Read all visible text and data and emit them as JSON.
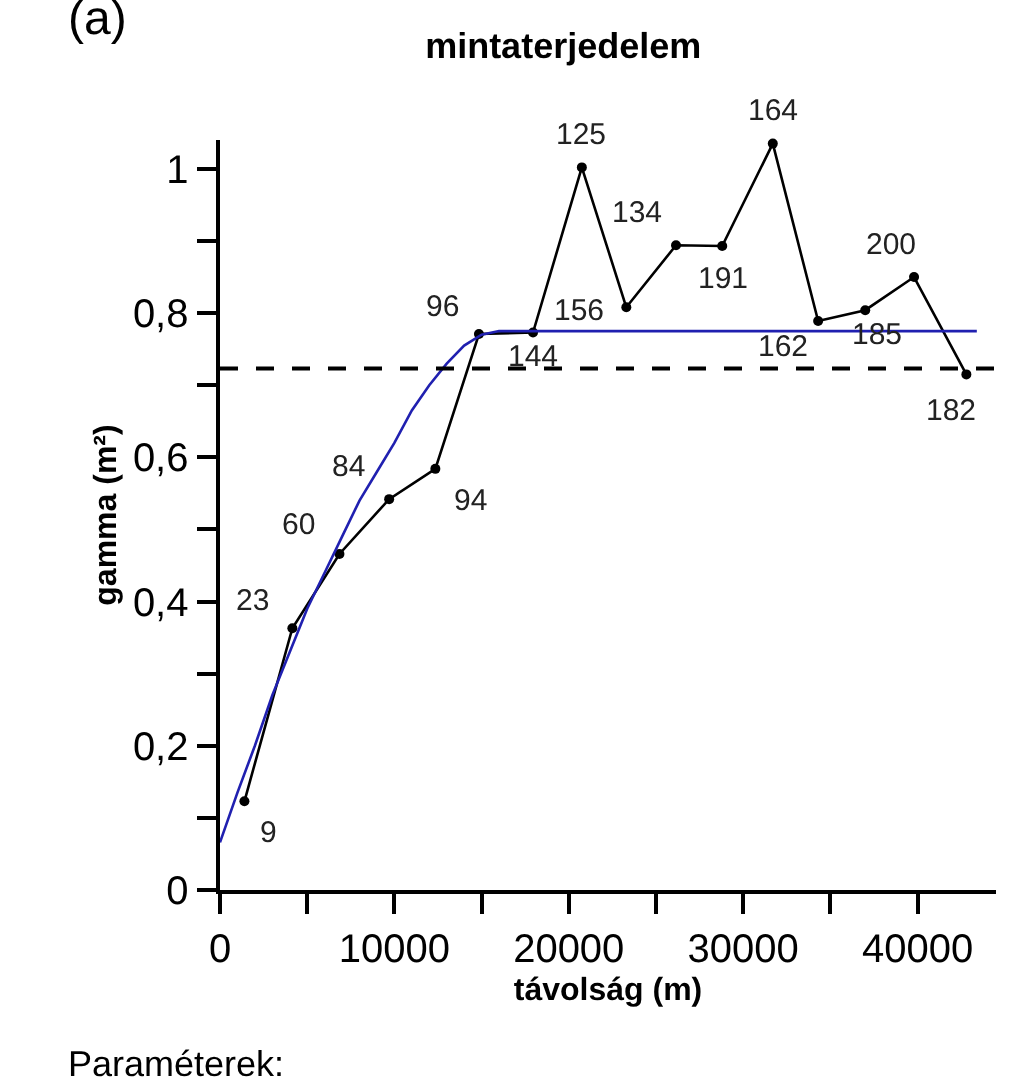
{
  "chart_data": {
    "type": "line",
    "title": "mintaterjedelem",
    "xlabel": "távolság (m)",
    "ylabel": "gamma (m²)",
    "annotations": [
      "(a)",
      "Paraméterek:",
      {
        "text": "9",
        "x": 1400,
        "y": 0.123
      },
      {
        "text": "23",
        "x": 4150,
        "y": 0.363
      },
      {
        "text": "60",
        "x": 6850,
        "y": 0.466
      },
      {
        "text": "84",
        "x": 9700,
        "y": 0.542
      },
      {
        "text": "94",
        "x": 12350,
        "y": 0.584
      },
      {
        "text": "96",
        "x": 14850,
        "y": 0.771
      },
      {
        "text": "144",
        "x": 17950,
        "y": 0.773
      },
      {
        "text": "125",
        "x": 20750,
        "y": 1.002
      },
      {
        "text": "156",
        "x": 23300,
        "y": 0.808
      },
      {
        "text": "134",
        "x": 26150,
        "y": 0.894
      },
      {
        "text": "191",
        "x": 28800,
        "y": 0.893
      },
      {
        "text": "164",
        "x": 31700,
        "y": 1.035
      },
      {
        "text": "162",
        "x": 34300,
        "y": 0.789
      },
      {
        "text": "185",
        "x": 37000,
        "y": 0.804
      },
      {
        "text": "200",
        "x": 39800,
        "y": 0.85
      },
      {
        "text": "182",
        "x": 42800,
        "y": 0.715
      }
    ],
    "xlim": [
      0,
      44500
    ],
    "ylim": [
      0,
      1.04
    ],
    "xticks": [
      0,
      {
        "value": 5000,
        "label": null
      },
      10000,
      {
        "value": 15000,
        "label": null
      },
      20000,
      {
        "value": 25000,
        "label": null
      },
      30000,
      {
        "value": 35000,
        "label": null
      },
      40000
    ],
    "yticks": [
      {
        "value": 0,
        "label": "0"
      },
      {
        "value": 0.1,
        "label": null
      },
      {
        "value": 0.2,
        "label": "0,2"
      },
      {
        "value": 0.3,
        "label": null
      },
      {
        "value": 0.4,
        "label": "0,4"
      },
      {
        "value": 0.5,
        "label": null
      },
      {
        "value": 0.6,
        "label": "0,6"
      },
      {
        "value": 0.7,
        "label": null
      },
      {
        "value": 0.8,
        "label": "0,8"
      },
      {
        "value": 0.9,
        "label": null
      },
      {
        "value": 1,
        "label": "1"
      }
    ],
    "grid": false,
    "series": [
      {
        "color": "#000000",
        "marker": "circle",
        "line_style": "solid",
        "x": [
          1400,
          4150,
          6850,
          9700,
          12350,
          14850,
          17950,
          20750,
          23300,
          26150,
          28800,
          31700,
          34300,
          37000,
          39800,
          42800
        ],
        "values": [
          0.123,
          0.363,
          0.466,
          0.542,
          0.584,
          0.771,
          0.773,
          1.002,
          0.808,
          0.894,
          0.893,
          1.035,
          0.789,
          0.804,
          0.85,
          0.715
        ]
      },
      {
        "color": "#2020b0",
        "marker": "none",
        "line_style": "solid",
        "x": [
          0,
          1000,
          2000,
          3000,
          4000,
          5000,
          6000,
          7000,
          8000,
          9000,
          10000,
          11000,
          12000,
          13000,
          14000,
          15000,
          16000,
          17000,
          43400
        ],
        "values": [
          0.066,
          0.135,
          0.2,
          0.27,
          0.33,
          0.39,
          0.44,
          0.49,
          0.54,
          0.58,
          0.62,
          0.665,
          0.7,
          0.73,
          0.755,
          0.77,
          0.775,
          0.775,
          0.775
        ]
      }
    ],
    "ref_lines": [
      {
        "axis": "y",
        "value": 0.723,
        "color": "#000000",
        "line_style": "dashed"
      }
    ]
  }
}
